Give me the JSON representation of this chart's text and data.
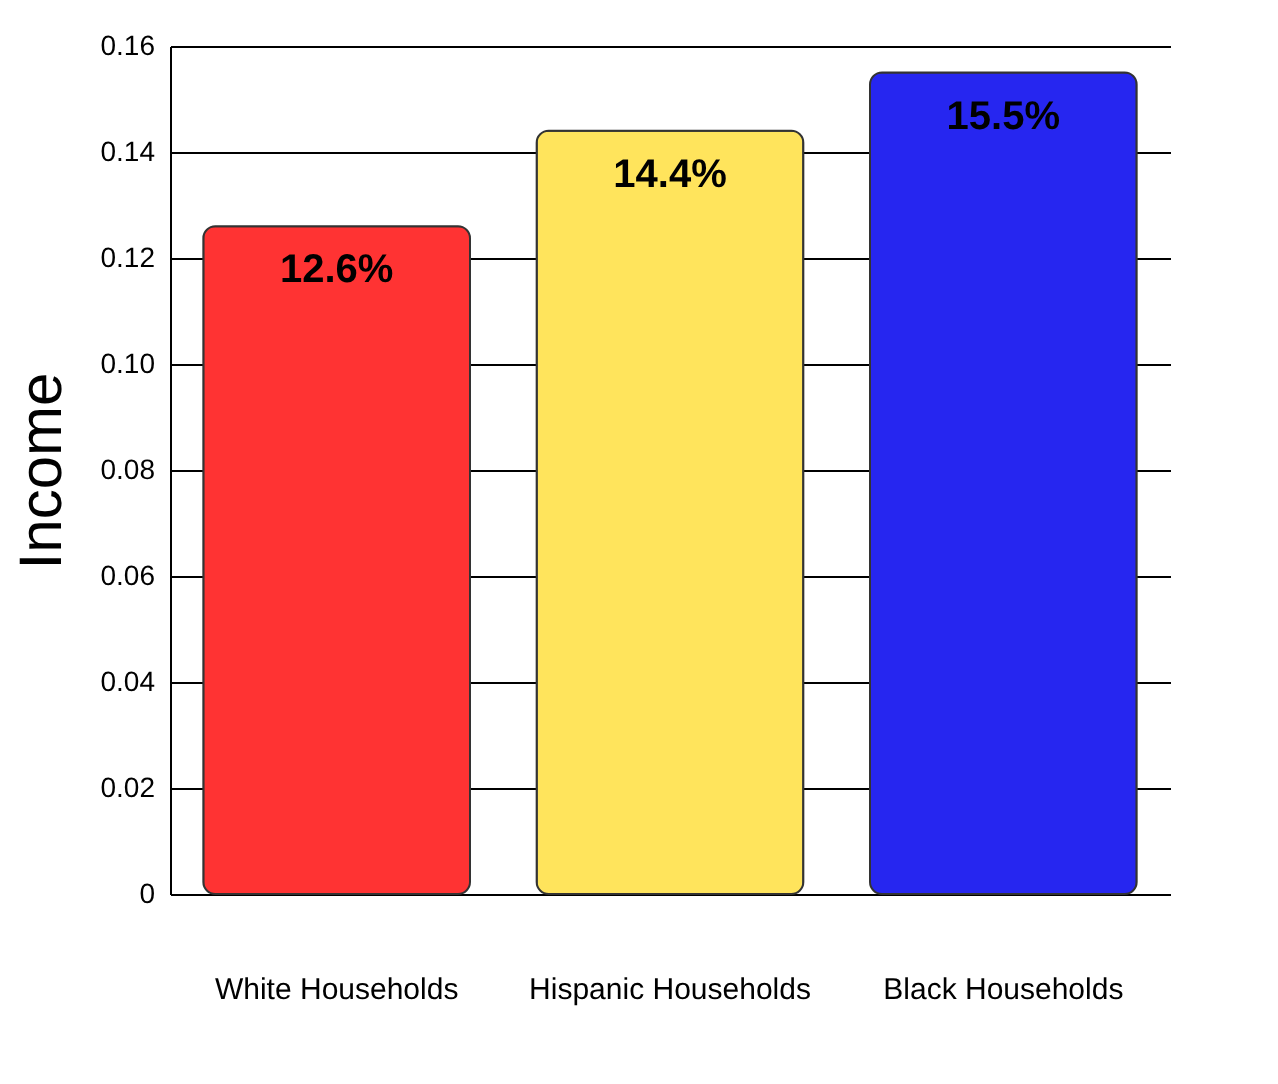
{
  "chart_data": {
    "type": "bar",
    "ylabel": "Income",
    "categories": [
      "White Households",
      "Hispanic Households",
      "Black Households"
    ],
    "values": [
      0.126,
      0.144,
      0.155
    ],
    "colors": [
      "#ff3333",
      "#ffe45c",
      "#2626f0"
    ],
    "value_labels": [
      "12.6%",
      "14.4%",
      "15.5%"
    ],
    "ylim": [
      0,
      0.16
    ],
    "yticks": [
      0,
      0.02,
      0.04,
      0.06,
      0.08,
      {
        "value": 0.1,
        "label": "0.10"
      },
      0.12,
      0.14,
      0.16
    ],
    "grid": "y"
  }
}
